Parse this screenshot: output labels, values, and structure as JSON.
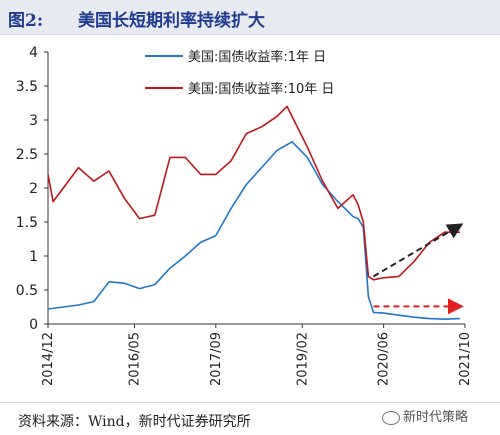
{
  "figure": {
    "label": "图2:",
    "title": "美国长短期利率持续扩大"
  },
  "source": "资料来源：Wind，新时代证券研究所",
  "watermark": "新时代策略",
  "chart_data": {
    "type": "line",
    "x_tick_labels": [
      "2014/12",
      "2016/05",
      "2017/09",
      "2019/02",
      "2020/06",
      "2021/10"
    ],
    "ylim": [
      0,
      4
    ],
    "y_ticks": [
      "0",
      "0.5",
      "1",
      "1.5",
      "2",
      "2.5",
      "3",
      "3.5",
      "4"
    ],
    "legend_position": "top-center",
    "grid": false,
    "series": [
      {
        "name": "美国:国债收益率:1年 日",
        "color": "#1f78c8",
        "x": [
          "2014-12",
          "2015-03",
          "2015-06",
          "2015-09",
          "2015-12",
          "2016-03",
          "2016-06",
          "2016-09",
          "2016-12",
          "2017-03",
          "2017-06",
          "2017-09",
          "2017-12",
          "2018-03",
          "2018-06",
          "2018-09",
          "2018-12",
          "2019-03",
          "2019-06",
          "2019-09",
          "2019-12",
          "2020-01",
          "2020-02",
          "2020-03",
          "2020-04",
          "2020-06",
          "2020-09",
          "2020-12",
          "2021-03",
          "2021-06",
          "2021-09"
        ],
        "values": [
          0.22,
          0.25,
          0.28,
          0.33,
          0.62,
          0.6,
          0.52,
          0.58,
          0.82,
          1.0,
          1.2,
          1.3,
          1.7,
          2.05,
          2.3,
          2.55,
          2.68,
          2.45,
          2.05,
          1.8,
          1.58,
          1.55,
          1.42,
          0.4,
          0.17,
          0.16,
          0.13,
          0.1,
          0.08,
          0.07,
          0.08
        ]
      },
      {
        "name": "美国:国债收益率:10年 日",
        "color": "#c0161c",
        "x": [
          "2014-12",
          "2015-01",
          "2015-03",
          "2015-06",
          "2015-09",
          "2015-12",
          "2016-03",
          "2016-06",
          "2016-09",
          "2016-12",
          "2017-03",
          "2017-06",
          "2017-09",
          "2017-12",
          "2018-03",
          "2018-06",
          "2018-09",
          "2018-11",
          "2019-03",
          "2019-06",
          "2019-09",
          "2019-12",
          "2020-01",
          "2020-02",
          "2020-03",
          "2020-04",
          "2020-06",
          "2020-09",
          "2020-12",
          "2021-03",
          "2021-06",
          "2021-09"
        ],
        "values": [
          2.2,
          1.8,
          2.0,
          2.3,
          2.1,
          2.25,
          1.85,
          1.55,
          1.6,
          2.45,
          2.45,
          2.2,
          2.2,
          2.4,
          2.8,
          2.9,
          3.05,
          3.2,
          2.6,
          2.1,
          1.7,
          1.9,
          1.75,
          1.5,
          0.7,
          0.65,
          0.68,
          0.7,
          0.92,
          1.2,
          1.35,
          1.35
        ]
      }
    ],
    "annotations": [
      {
        "kind": "arrow",
        "style": "dashed",
        "color": "#222222",
        "from": {
          "x": "2020-04",
          "y": 0.7
        },
        "to": {
          "x": "2021-09",
          "y": 1.45
        }
      },
      {
        "kind": "arrow",
        "style": "dashed",
        "color": "#e02020",
        "from": {
          "x": "2020-04",
          "y": 0.26
        },
        "to": {
          "x": "2021-09",
          "y": 0.26
        }
      }
    ]
  }
}
